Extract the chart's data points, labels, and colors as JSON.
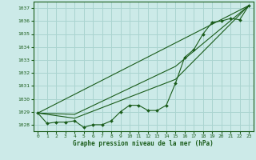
{
  "xlabel": "Graphe pression niveau de la mer (hPa)",
  "bg_color": "#cceae8",
  "grid_color": "#aad4d0",
  "line_color": "#1a5c1a",
  "xlim": [
    -0.5,
    23.5
  ],
  "ylim": [
    1027.5,
    1037.5
  ],
  "yticks": [
    1028,
    1029,
    1030,
    1031,
    1032,
    1033,
    1034,
    1035,
    1036,
    1037
  ],
  "xticks": [
    0,
    1,
    2,
    3,
    4,
    5,
    6,
    7,
    8,
    9,
    10,
    11,
    12,
    13,
    14,
    15,
    16,
    17,
    18,
    19,
    20,
    21,
    22,
    23
  ],
  "series": [
    {
      "x": [
        0,
        1,
        2,
        3,
        4,
        5,
        6,
        7,
        8,
        9,
        10,
        11,
        12,
        13,
        14,
        15,
        16,
        17,
        18,
        19,
        20,
        21,
        22,
        23
      ],
      "y": [
        1028.9,
        1028.1,
        1028.2,
        1028.2,
        1028.3,
        1027.8,
        1028.0,
        1028.0,
        1028.3,
        1029.0,
        1029.5,
        1029.5,
        1029.1,
        1029.1,
        1029.5,
        1031.2,
        1033.2,
        1033.8,
        1035.0,
        1035.9,
        1036.0,
        1036.2,
        1036.1,
        1037.2
      ],
      "marker": true
    },
    {
      "x": [
        0,
        23
      ],
      "y": [
        1028.9,
        1037.2
      ],
      "marker": false
    },
    {
      "x": [
        0,
        4,
        15,
        23
      ],
      "y": [
        1028.9,
        1028.5,
        1031.5,
        1037.2
      ],
      "marker": false
    },
    {
      "x": [
        0,
        4,
        15,
        23
      ],
      "y": [
        1028.9,
        1028.8,
        1032.5,
        1037.2
      ],
      "marker": false
    }
  ]
}
